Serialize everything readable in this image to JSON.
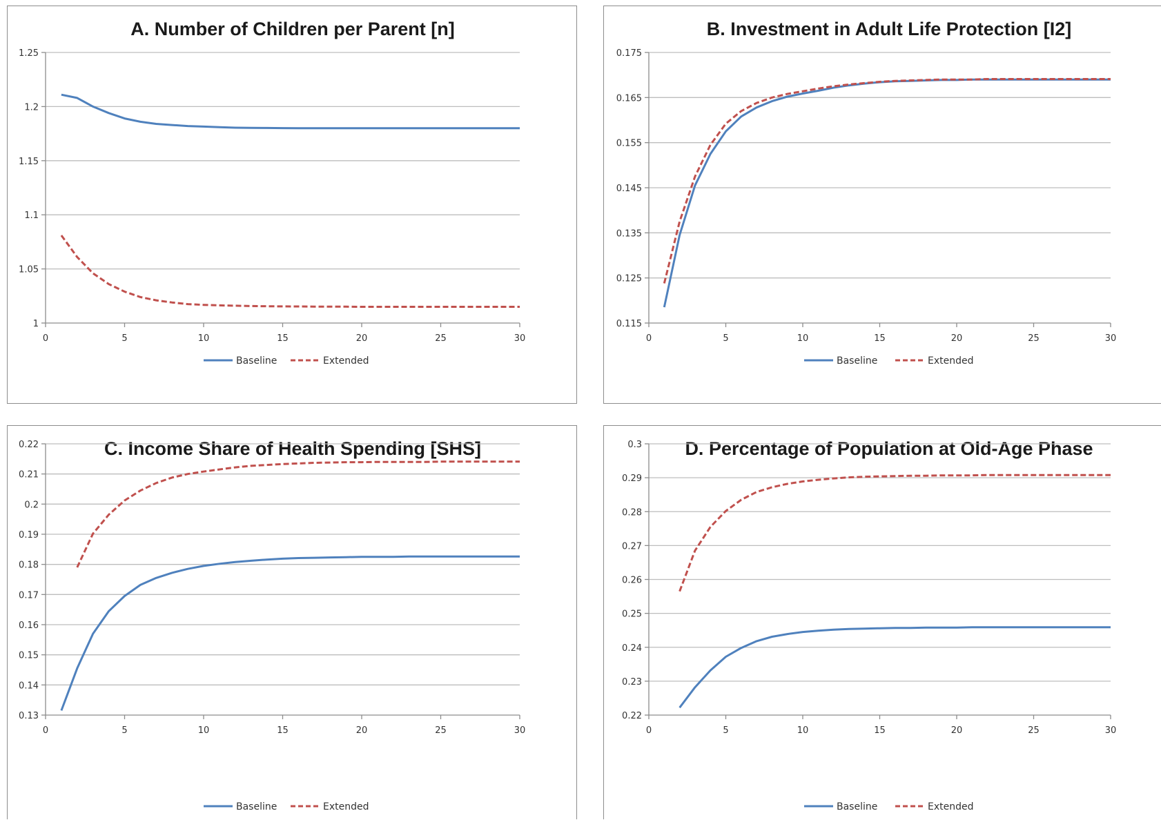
{
  "chart_data": [
    {
      "id": "a",
      "type": "line",
      "title": "A. Number of Children per Parent [n]",
      "xlim": [
        0,
        30
      ],
      "ylim": [
        1,
        1.25
      ],
      "x_ticks": [
        0,
        5,
        10,
        15,
        20,
        25,
        30
      ],
      "y_ticks": [
        1,
        1.05,
        1.1,
        1.15,
        1.2,
        1.25
      ],
      "y_tick_labels": [
        "1",
        "1.05",
        "1.1",
        "1.15",
        "1.2",
        "1.25"
      ],
      "grid": true,
      "legend_position": "bottom",
      "series": [
        {
          "name": "Baseline",
          "color": "#4f81bd",
          "dash": "solid",
          "x": [
            1,
            2,
            3,
            4,
            5,
            6,
            7,
            8,
            9,
            10,
            11,
            12,
            13,
            14,
            15,
            16,
            17,
            18,
            19,
            20,
            21,
            22,
            23,
            24,
            25,
            26,
            27,
            28,
            29,
            30
          ],
          "values": [
            1.211,
            1.208,
            1.2,
            1.194,
            1.189,
            1.186,
            1.184,
            1.183,
            1.182,
            1.1815,
            1.181,
            1.1805,
            1.1803,
            1.1802,
            1.1801,
            1.18,
            1.18,
            1.18,
            1.18,
            1.18,
            1.18,
            1.18,
            1.18,
            1.18,
            1.18,
            1.18,
            1.18,
            1.18,
            1.18,
            1.18
          ]
        },
        {
          "name": "Extended",
          "color": "#c0504d",
          "dash": "dashed",
          "x": [
            1,
            2,
            3,
            4,
            5,
            6,
            7,
            8,
            9,
            10,
            11,
            12,
            13,
            14,
            15,
            16,
            17,
            18,
            19,
            20,
            21,
            22,
            23,
            24,
            25,
            26,
            27,
            28,
            29,
            30
          ],
          "values": [
            1.081,
            1.061,
            1.046,
            1.036,
            1.029,
            1.024,
            1.021,
            1.019,
            1.0175,
            1.0168,
            1.0163,
            1.016,
            1.0157,
            1.0155,
            1.0154,
            1.0153,
            1.0152,
            1.0151,
            1.0151,
            1.015,
            1.015,
            1.015,
            1.015,
            1.015,
            1.015,
            1.015,
            1.015,
            1.015,
            1.015,
            1.015
          ]
        }
      ]
    },
    {
      "id": "b",
      "type": "line",
      "title": "B. Investment in Adult Life Protection [I2]",
      "xlim": [
        0,
        30
      ],
      "ylim": [
        0.115,
        0.175
      ],
      "x_ticks": [
        0,
        5,
        10,
        15,
        20,
        25,
        30
      ],
      "y_ticks": [
        0.115,
        0.125,
        0.135,
        0.145,
        0.155,
        0.165,
        0.175
      ],
      "y_tick_labels": [
        "0.115",
        "0.125",
        "0.135",
        "0.145",
        "0.155",
        "0.165",
        "0.175"
      ],
      "grid": true,
      "legend_position": "bottom",
      "series": [
        {
          "name": "Baseline",
          "color": "#4f81bd",
          "dash": "solid",
          "x": [
            1,
            2,
            3,
            4,
            5,
            6,
            7,
            8,
            9,
            10,
            11,
            12,
            13,
            14,
            15,
            16,
            17,
            18,
            19,
            20,
            21,
            22,
            23,
            24,
            25,
            26,
            27,
            28,
            29,
            30
          ],
          "values": [
            0.1185,
            0.1345,
            0.1455,
            0.1525,
            0.1575,
            0.1608,
            0.1628,
            0.1642,
            0.1652,
            0.1659,
            0.1665,
            0.1672,
            0.1677,
            0.1681,
            0.1684,
            0.1686,
            0.1687,
            0.1688,
            0.1689,
            0.1689,
            0.169,
            0.169,
            0.169,
            0.169,
            0.169,
            0.169,
            0.169,
            0.169,
            0.169,
            0.169
          ]
        },
        {
          "name": "Extended",
          "color": "#c0504d",
          "dash": "dashed",
          "x": [
            1,
            2,
            3,
            4,
            5,
            6,
            7,
            8,
            9,
            10,
            11,
            12,
            13,
            14,
            15,
            16,
            17,
            18,
            19,
            20,
            21,
            22,
            23,
            24,
            25,
            26,
            27,
            28,
            29,
            30
          ],
          "values": [
            0.1238,
            0.1375,
            0.1475,
            0.1545,
            0.1592,
            0.162,
            0.1638,
            0.165,
            0.1658,
            0.1664,
            0.167,
            0.1675,
            0.1679,
            0.1682,
            0.1685,
            0.1687,
            0.1688,
            0.1689,
            0.169,
            0.169,
            0.169,
            0.1691,
            0.1691,
            0.1691,
            0.1691,
            0.1691,
            0.1691,
            0.1691,
            0.1691,
            0.1691
          ]
        }
      ]
    },
    {
      "id": "c",
      "type": "line",
      "title": "C. Income Share of Health Spending [SHS]",
      "xlim": [
        0,
        30
      ],
      "ylim": [
        0.13,
        0.22
      ],
      "x_ticks": [
        0,
        5,
        10,
        15,
        20,
        25,
        30
      ],
      "y_ticks": [
        0.13,
        0.14,
        0.15,
        0.16,
        0.17,
        0.18,
        0.19,
        0.2,
        0.21,
        0.22
      ],
      "y_tick_labels": [
        "0.13",
        "0.14",
        "0.15",
        "0.16",
        "0.17",
        "0.18",
        "0.19",
        "0.2",
        "0.21",
        "0.22"
      ],
      "grid": true,
      "legend_position": "bottom",
      "series": [
        {
          "name": "Baseline",
          "color": "#4f81bd",
          "dash": "solid",
          "x": [
            1,
            2,
            3,
            4,
            5,
            6,
            7,
            8,
            9,
            10,
            11,
            12,
            13,
            14,
            15,
            16,
            17,
            18,
            19,
            20,
            21,
            22,
            23,
            24,
            25,
            26,
            27,
            28,
            29,
            30
          ],
          "values": [
            0.1315,
            0.1455,
            0.157,
            0.1645,
            0.1695,
            0.1732,
            0.1755,
            0.1772,
            0.1785,
            0.1795,
            0.1802,
            0.1808,
            0.1812,
            0.1816,
            0.1819,
            0.1821,
            0.1822,
            0.1823,
            0.1824,
            0.1825,
            0.1825,
            0.1825,
            0.1826,
            0.1826,
            0.1826,
            0.1826,
            0.1826,
            0.1826,
            0.1826,
            0.1826
          ]
        },
        {
          "name": "Extended",
          "color": "#c0504d",
          "dash": "dashed",
          "x": [
            2,
            3,
            4,
            5,
            6,
            7,
            8,
            9,
            10,
            11,
            12,
            13,
            14,
            15,
            16,
            17,
            18,
            19,
            20,
            21,
            22,
            23,
            24,
            25,
            26,
            27,
            28,
            29,
            30
          ],
          "values": [
            0.179,
            0.1902,
            0.1965,
            0.2012,
            0.2045,
            0.207,
            0.2088,
            0.21,
            0.2108,
            0.2115,
            0.2122,
            0.2127,
            0.213,
            0.2133,
            0.2135,
            0.2137,
            0.2138,
            0.2139,
            0.2139,
            0.214,
            0.214,
            0.214,
            0.214,
            0.2141,
            0.2141,
            0.2141,
            0.2141,
            0.2141,
            0.2141
          ]
        }
      ]
    },
    {
      "id": "d",
      "type": "line",
      "title": "D. Percentage of Population at Old-Age Phase",
      "xlim": [
        0,
        30
      ],
      "ylim": [
        0.22,
        0.3
      ],
      "x_ticks": [
        0,
        5,
        10,
        15,
        20,
        25,
        30
      ],
      "y_ticks": [
        0.22,
        0.23,
        0.24,
        0.25,
        0.26,
        0.27,
        0.28,
        0.29,
        0.3
      ],
      "y_tick_labels": [
        "0.22",
        "0.23",
        "0.24",
        "0.25",
        "0.26",
        "0.27",
        "0.28",
        "0.29",
        "0.3"
      ],
      "grid": true,
      "legend_position": "bottom",
      "series": [
        {
          "name": "Baseline",
          "color": "#4f81bd",
          "dash": "solid",
          "x": [
            2,
            3,
            4,
            5,
            6,
            7,
            8,
            9,
            10,
            11,
            12,
            13,
            14,
            15,
            16,
            17,
            18,
            19,
            20,
            21,
            22,
            23,
            24,
            25,
            26,
            27,
            28,
            29,
            30
          ],
          "values": [
            0.2222,
            0.2282,
            0.2332,
            0.2372,
            0.2398,
            0.2418,
            0.2431,
            0.2439,
            0.2445,
            0.2449,
            0.2452,
            0.2454,
            0.2455,
            0.2456,
            0.2457,
            0.2457,
            0.2458,
            0.2458,
            0.2458,
            0.2459,
            0.2459,
            0.2459,
            0.2459,
            0.2459,
            0.2459,
            0.2459,
            0.2459,
            0.2459,
            0.2459
          ]
        },
        {
          "name": "Extended",
          "color": "#c0504d",
          "dash": "dashed",
          "x": [
            2,
            3,
            4,
            5,
            6,
            7,
            8,
            9,
            10,
            11,
            12,
            13,
            14,
            15,
            16,
            17,
            18,
            19,
            20,
            21,
            22,
            23,
            24,
            25,
            26,
            27,
            28,
            29,
            30
          ],
          "values": [
            0.2565,
            0.2685,
            0.2755,
            0.2802,
            0.2835,
            0.2858,
            0.2872,
            0.2882,
            0.2889,
            0.2894,
            0.2898,
            0.2901,
            0.2903,
            0.2904,
            0.2905,
            0.2906,
            0.2906,
            0.2907,
            0.2907,
            0.2907,
            0.2908,
            0.2908,
            0.2908,
            0.2908,
            0.2908,
            0.2908,
            0.2908,
            0.2908,
            0.2908
          ]
        }
      ]
    }
  ]
}
